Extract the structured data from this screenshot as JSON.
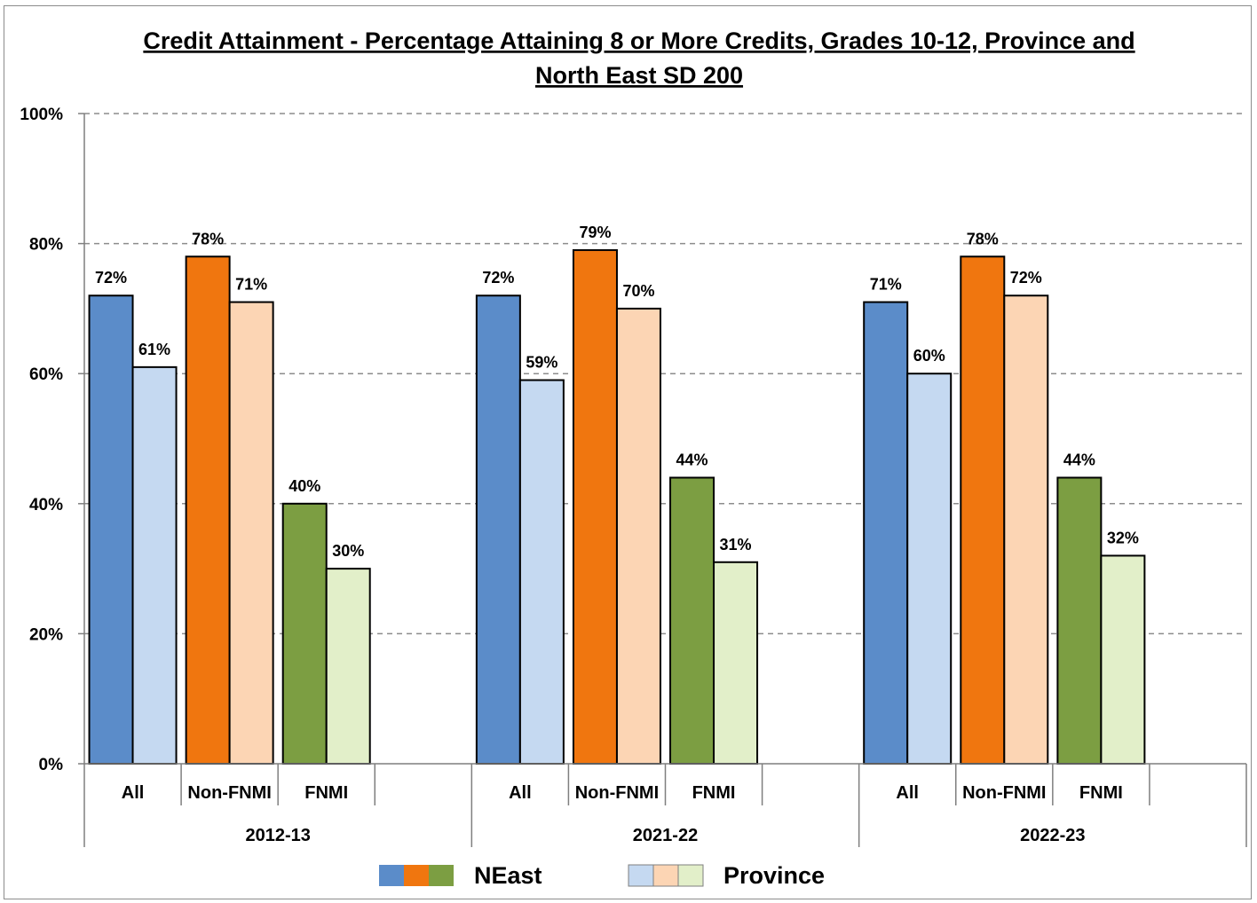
{
  "chart_data": {
    "type": "bar",
    "title_line1": "Credit Attainment - Percentage Attaining 8 or More Credits, Grades 10-12, Province and",
    "title_line2": "North East SD 200",
    "ylim": [
      0,
      100
    ],
    "yticks": [
      "0%",
      "20%",
      "40%",
      "60%",
      "80%",
      "100%"
    ],
    "ytick_values": [
      0,
      20,
      40,
      60,
      80,
      100
    ],
    "grid": true,
    "years": [
      "2012-13",
      "2021-22",
      "2022-23"
    ],
    "subcategories": [
      "All",
      "Non-FNMI",
      "FNMI"
    ],
    "series": [
      {
        "name": "NEast",
        "values": [
          [
            72,
            78,
            40
          ],
          [
            72,
            79,
            44
          ],
          [
            71,
            78,
            44
          ]
        ],
        "labels": [
          [
            "72%",
            "78%",
            "40%"
          ],
          [
            "72%",
            "79%",
            "44%"
          ],
          [
            "71%",
            "78%",
            "44%"
          ]
        ]
      },
      {
        "name": "Province",
        "values": [
          [
            61,
            71,
            30
          ],
          [
            59,
            70,
            31
          ],
          [
            60,
            72,
            32
          ]
        ],
        "labels": [
          [
            "61%",
            "71%",
            "30%"
          ],
          [
            "59%",
            "70%",
            "31%"
          ],
          [
            "60%",
            "72%",
            "32%"
          ]
        ]
      }
    ],
    "colors": {
      "NEast": [
        "#5b8cc9",
        "#f0760f",
        "#7c9e42"
      ],
      "Province": [
        "#c5d9f1",
        "#fcd5b4",
        "#e2efc9"
      ]
    },
    "legend": {
      "position": "bottom",
      "entries": [
        "NEast",
        "Province"
      ]
    }
  }
}
